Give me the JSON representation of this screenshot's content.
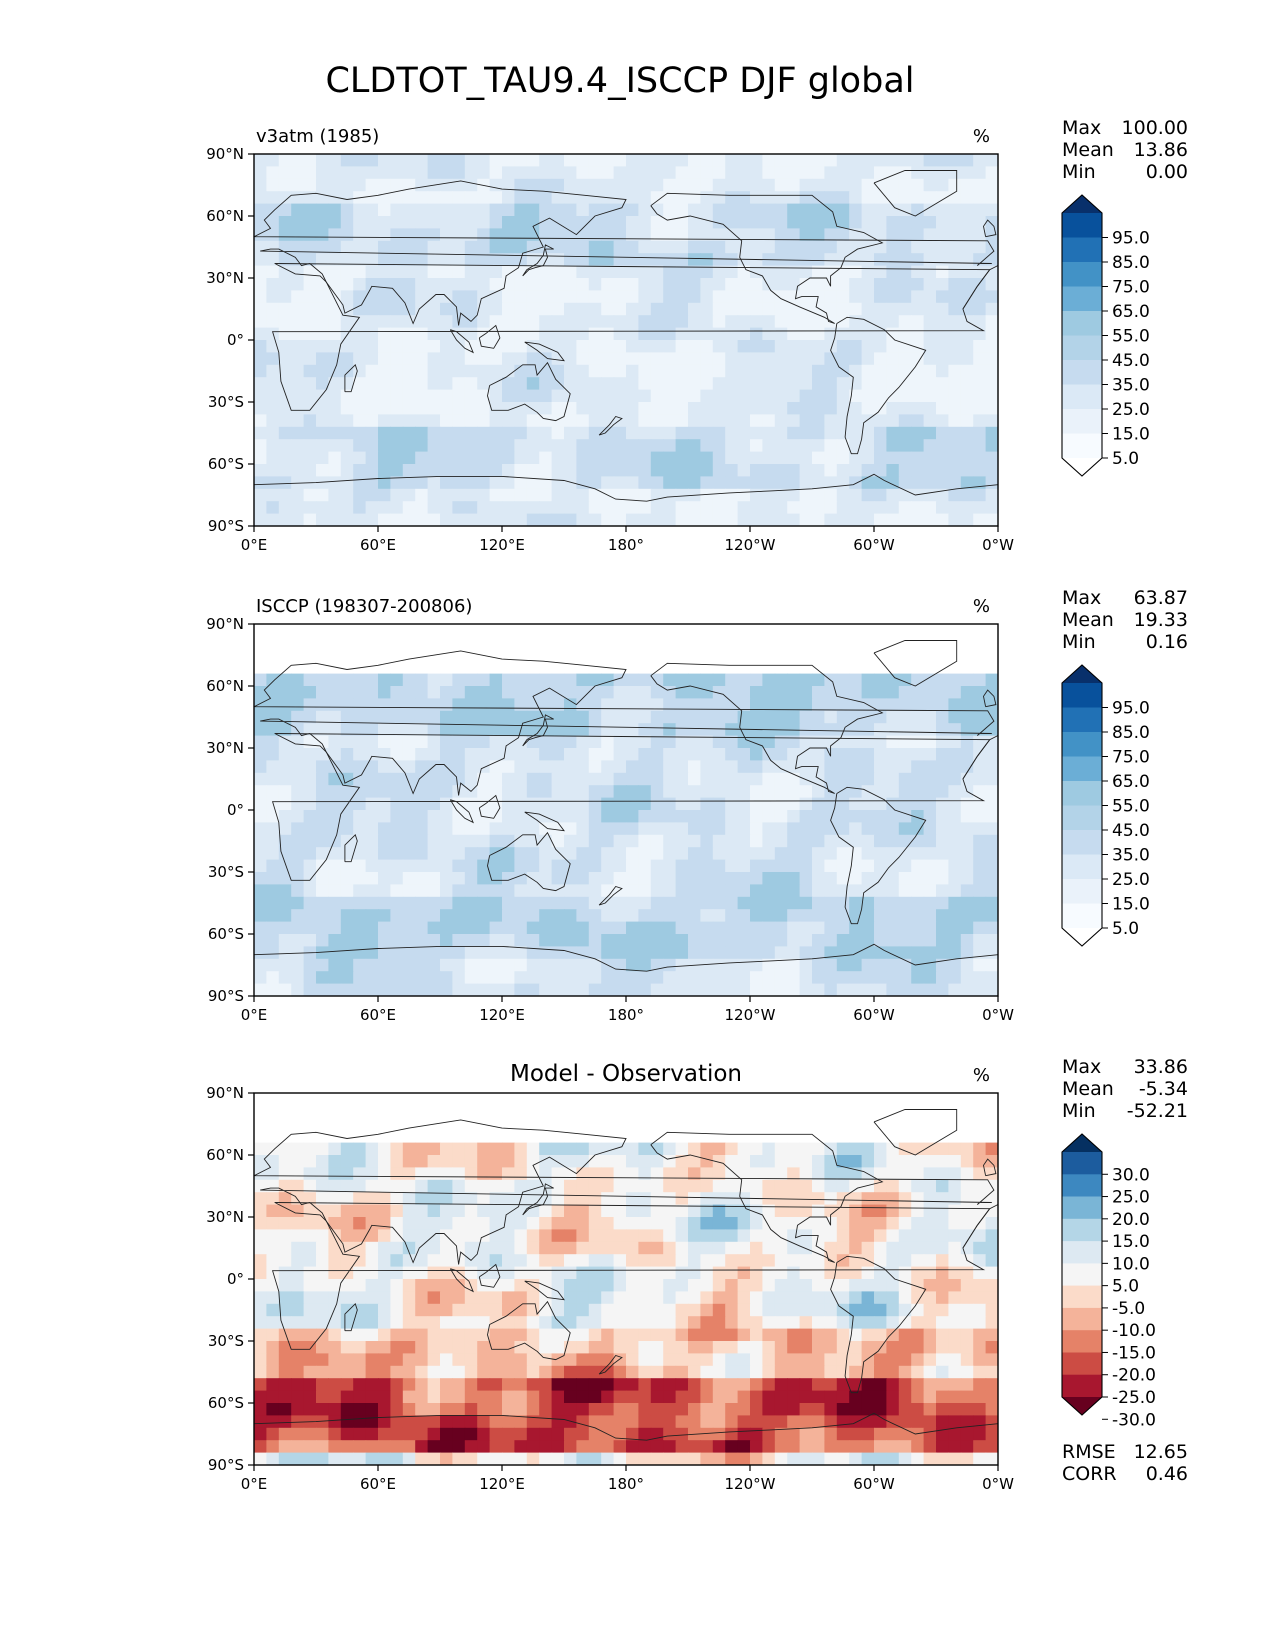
{
  "title": "CLDTOT_TAU9.4_ISCCP DJF global",
  "lat_labels": [
    "90°N",
    "60°N",
    "30°N",
    "0°",
    "30°S",
    "60°S",
    "90°S"
  ],
  "lon_labels": [
    "0°E",
    "60°E",
    "120°E",
    "180°",
    "120°W",
    "60°W",
    "0°W"
  ],
  "panels": [
    {
      "left_title": "v3atm (1985)",
      "center_title": "",
      "units": "%",
      "stats": [
        {
          "label": "Max",
          "value": "100.00"
        },
        {
          "label": "Mean",
          "value": "13.86"
        },
        {
          "label": "Min",
          "value": "0.00"
        }
      ],
      "colorbar_ticks": [
        "95.0",
        "85.0",
        "75.0",
        "65.0",
        "55.0",
        "45.0",
        "35.0",
        "25.0",
        "15.0",
        "5.0"
      ],
      "colorbar_colors": [
        "#08306b",
        "#08519c",
        "#2171b5",
        "#4292c6",
        "#6baed6",
        "#9ecae1",
        "#b3d3e8",
        "#c6dbef",
        "#dbe9f6",
        "#eaf2fa",
        "#f7fbff",
        "#ffffff"
      ],
      "extra_stats": []
    },
    {
      "left_title": "ISCCP (198307-200806)",
      "center_title": "",
      "units": "%",
      "stats": [
        {
          "label": "Max",
          "value": "63.87"
        },
        {
          "label": "Mean",
          "value": "19.33"
        },
        {
          "label": "Min",
          "value": "0.16"
        }
      ],
      "colorbar_ticks": [
        "95.0",
        "85.0",
        "75.0",
        "65.0",
        "55.0",
        "45.0",
        "35.0",
        "25.0",
        "15.0",
        "5.0"
      ],
      "colorbar_colors": [
        "#08306b",
        "#08519c",
        "#2171b5",
        "#4292c6",
        "#6baed6",
        "#9ecae1",
        "#b3d3e8",
        "#c6dbef",
        "#dbe9f6",
        "#eaf2fa",
        "#f7fbff",
        "#ffffff"
      ],
      "extra_stats": []
    },
    {
      "left_title": "",
      "center_title": "Model - Observation",
      "units": "%",
      "stats": [
        {
          "label": "Max",
          "value": "33.86"
        },
        {
          "label": "Mean",
          "value": "-5.34"
        },
        {
          "label": "Min",
          "value": "-52.21"
        }
      ],
      "colorbar_ticks": [
        "30.0",
        "25.0",
        "20.0",
        "15.0",
        "10.0",
        "5.0",
        "-5.0",
        "-10.0",
        "-15.0",
        "-20.0",
        "-25.0",
        "-30.0"
      ],
      "colorbar_colors": [
        "#053061",
        "#1c5c9e",
        "#3d88c0",
        "#7ab5d6",
        "#b4d6e7",
        "#dde9f2",
        "#f5f5f5",
        "#fbdbc9",
        "#f4b39a",
        "#e58268",
        "#cc4c44",
        "#a8172f",
        "#67001f"
      ],
      "extra_stats": [
        {
          "label": "RMSE",
          "value": "12.65"
        },
        {
          "label": "CORR",
          "value": "0.46"
        }
      ]
    }
  ],
  "colors": {
    "coast": "#222222",
    "frame": "#000000",
    "ocean_blue_1": "#eef5fb",
    "ocean_blue_2": "#dce9f5",
    "ocean_blue_3": "#c6dbef",
    "ocean_blue_4": "#9ecae1",
    "diff_bg": "#f5f5f5"
  }
}
